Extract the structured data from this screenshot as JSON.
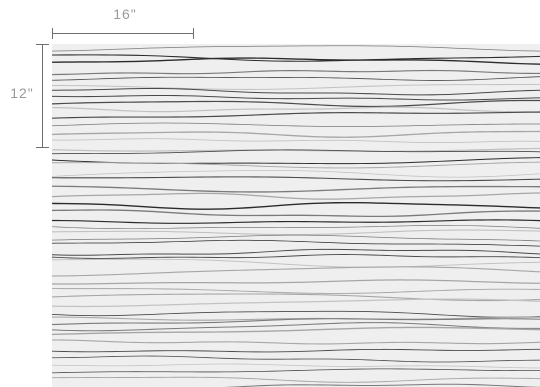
{
  "dimensions": {
    "width_label": "16\"",
    "height_label": "12\""
  },
  "pattern": {
    "background_color": "#efefef",
    "line_colors": [
      "#2b2b2b",
      "#4a4a4a",
      "#7a7a7a",
      "#a6a6a6",
      "#c2c2c2"
    ]
  }
}
